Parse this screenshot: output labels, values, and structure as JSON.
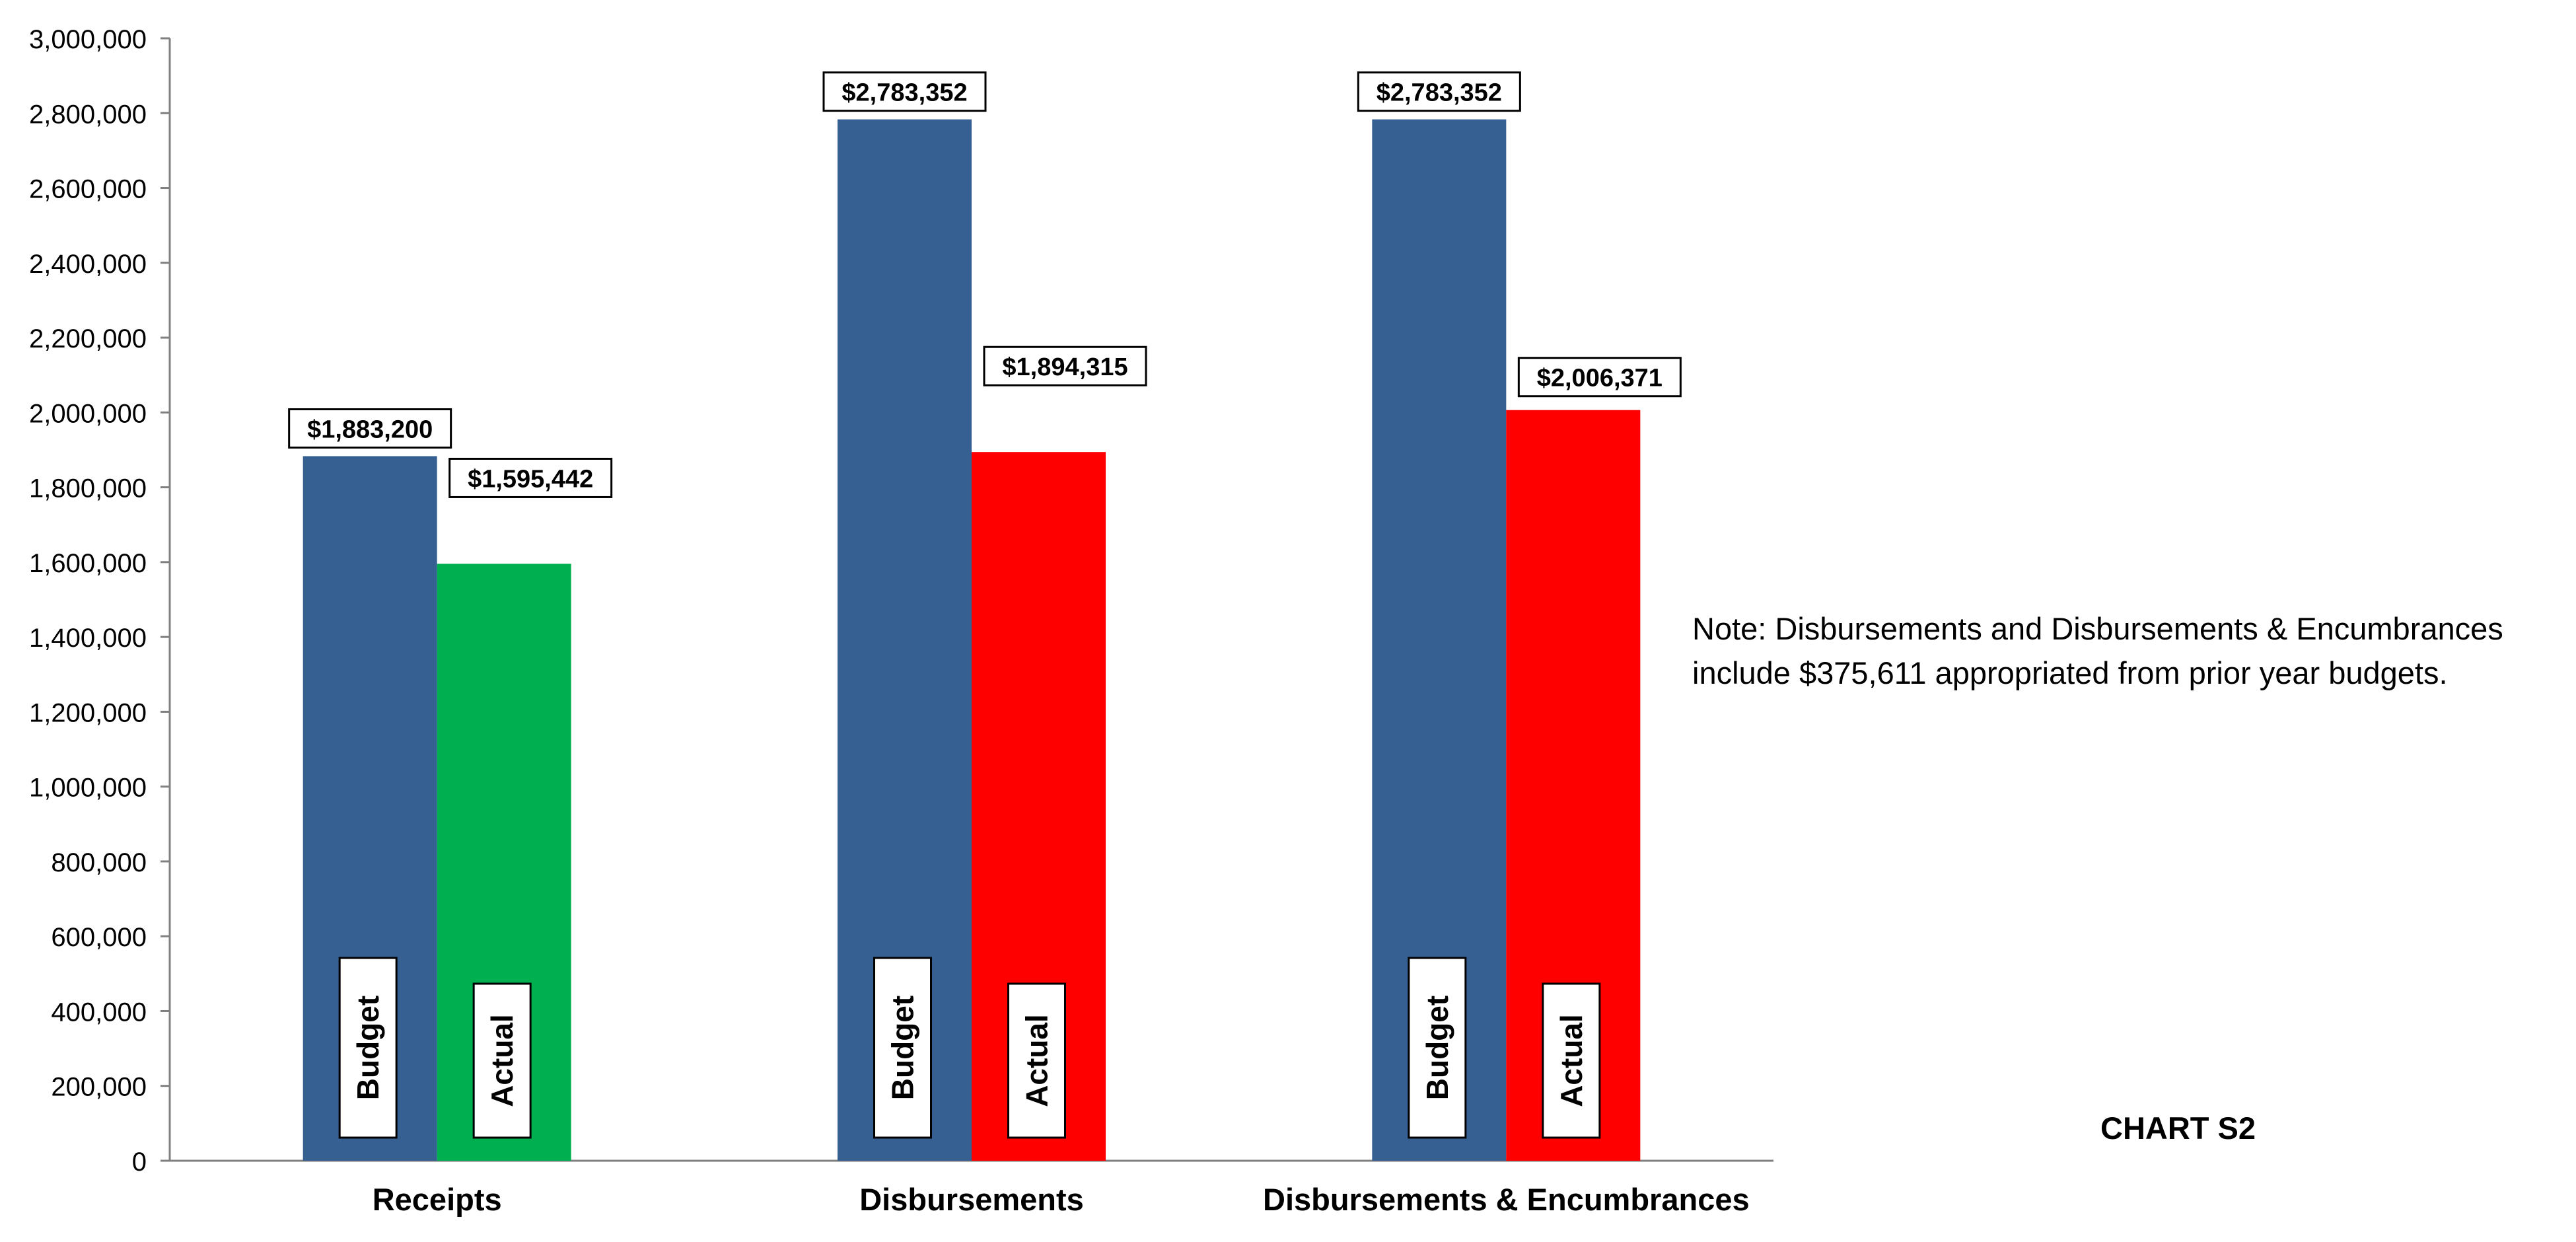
{
  "chart_data": {
    "type": "bar",
    "categories": [
      "Receipts",
      "Disbursements",
      "Disbursements & Encumbrances"
    ],
    "series": [
      {
        "name": "Budget",
        "color": "#376092",
        "values": [
          1883200,
          2783352,
          2783352
        ],
        "labels": [
          "$1,883,200",
          "$2,783,352",
          "$2,783,352"
        ]
      },
      {
        "name": "Actual",
        "colors": [
          "#00B050",
          "#FF0000",
          "#FF0000"
        ],
        "values": [
          1595442,
          1894315,
          2006371
        ],
        "labels": [
          "$1,595,442",
          "$1,894,315",
          "$2,006,371"
        ]
      }
    ],
    "ylim": [
      0,
      3000000
    ],
    "yticks": [
      0,
      200000,
      400000,
      600000,
      800000,
      1000000,
      1200000,
      1400000,
      1600000,
      1800000,
      2000000,
      2200000,
      2400000,
      2600000,
      2800000,
      3000000
    ],
    "ytick_labels": [
      "0",
      "200,000",
      "400,000",
      "600,000",
      "800,000",
      "1,000,000",
      "1,200,000",
      "1,400,000",
      "1,600,000",
      "1,800,000",
      "2,000,000",
      "2,200,000",
      "2,400,000",
      "2,600,000",
      "2,800,000",
      "3,000,000"
    ],
    "grid": false,
    "legend": "none"
  },
  "note": {
    "line1": "Note:  Disbursements and Disbursements & Encumbrances",
    "line2": "include $375,611 appropriated from prior year budgets."
  },
  "chart_id": "CHART S2"
}
